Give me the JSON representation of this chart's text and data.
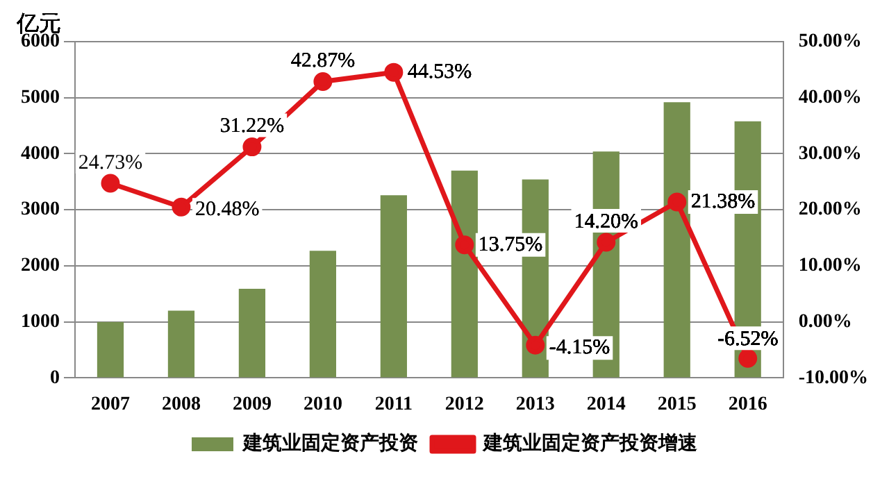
{
  "chart_data": {
    "type": "bar",
    "ylabel": "亿元",
    "categories": [
      "2007",
      "2008",
      "2009",
      "2010",
      "2011",
      "2012",
      "2013",
      "2014",
      "2015",
      "2016"
    ],
    "series": [
      {
        "name": "建筑业固定资产投资",
        "color": "#76904f",
        "values": [
          1000,
          1200,
          1590,
          2270,
          3260,
          3700,
          3540,
          4040,
          4920,
          4580
        ]
      },
      {
        "name": "建筑业固定资产投资增速",
        "type": "line",
        "axis": "y2",
        "color": "#e0171b",
        "values": [
          24.73,
          20.48,
          31.22,
          42.87,
          44.53,
          13.75,
          -4.15,
          14.2,
          21.38,
          -6.52
        ],
        "value_labels": [
          "24.73%",
          "20.48%",
          "31.22%",
          "42.87%",
          "44.53%",
          "13.75%",
          "-4.15%",
          "14.20%",
          "21.38%",
          "-6.52%"
        ]
      }
    ],
    "ylim": [
      0,
      6000
    ],
    "yticks": [
      0,
      1000,
      2000,
      3000,
      4000,
      5000,
      6000
    ],
    "y2lim": [
      -10,
      50
    ],
    "y2ticks": [
      {
        "value": -10,
        "label": "-10.00%"
      },
      {
        "value": 0,
        "label": "0.00%"
      },
      {
        "value": 10,
        "label": "10.00%"
      },
      {
        "value": 20,
        "label": "20.00%"
      },
      {
        "value": 30,
        "label": "30.00%"
      },
      {
        "value": 40,
        "label": "40.00%"
      },
      {
        "value": 50,
        "label": "50.00%"
      }
    ],
    "grid": "y",
    "legend": "bottom",
    "marker": "circle",
    "line_style": "solid"
  }
}
